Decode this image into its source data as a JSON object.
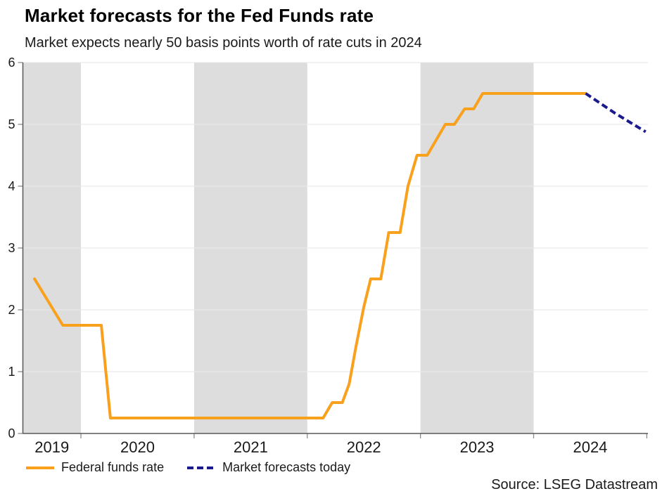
{
  "chart_data": {
    "type": "line",
    "title": "Market forecasts for the Fed Funds rate",
    "subtitle": "Market expects nearly 50 basis points worth of rate cuts in 2024",
    "source": "Source: LSEG Datastream",
    "grid": true,
    "legend_position": "bottom-left",
    "x_axis": {
      "range": [
        2019.487,
        2025.01
      ],
      "ticks": [
        2020,
        2021,
        2022,
        2023,
        2024,
        2025
      ],
      "labels": [
        "2019",
        "2020",
        "2021",
        "2022",
        "2023",
        "2024"
      ]
    },
    "y_axis": {
      "range": [
        0,
        6
      ],
      "ticks": [
        0,
        1,
        2,
        3,
        4,
        5,
        6
      ]
    },
    "shaded_year_bands": [
      [
        2019.487,
        2020
      ],
      [
        2021,
        2022
      ],
      [
        2023,
        2024
      ]
    ],
    "band_color": "#dddddd",
    "series": [
      {
        "name": "Federal funds rate",
        "color": "#f9a01c",
        "style": "solid",
        "points": [
          [
            2019.59,
            2.5
          ],
          [
            2019.84,
            1.75
          ],
          [
            2020.18,
            1.75
          ],
          [
            2020.26,
            0.25
          ],
          [
            2022.14,
            0.25
          ],
          [
            2022.22,
            0.5
          ],
          [
            2022.31,
            0.5
          ],
          [
            2022.37,
            0.8
          ],
          [
            2022.43,
            1.4
          ],
          [
            2022.5,
            2.05
          ],
          [
            2022.56,
            2.5
          ],
          [
            2022.65,
            2.5
          ],
          [
            2022.72,
            3.25
          ],
          [
            2022.82,
            3.25
          ],
          [
            2022.89,
            4.0
          ],
          [
            2022.97,
            4.5
          ],
          [
            2023.06,
            4.5
          ],
          [
            2023.22,
            5.0
          ],
          [
            2023.3,
            5.0
          ],
          [
            2023.39,
            5.25
          ],
          [
            2023.47,
            5.25
          ],
          [
            2023.55,
            5.5
          ],
          [
            2024.46,
            5.5
          ]
        ]
      },
      {
        "name": "Market forecasts today",
        "color": "#1a1a8c",
        "style": "dashed",
        "points": [
          [
            2024.46,
            5.5
          ],
          [
            2024.72,
            5.18
          ],
          [
            2024.99,
            4.88
          ]
        ]
      }
    ]
  }
}
